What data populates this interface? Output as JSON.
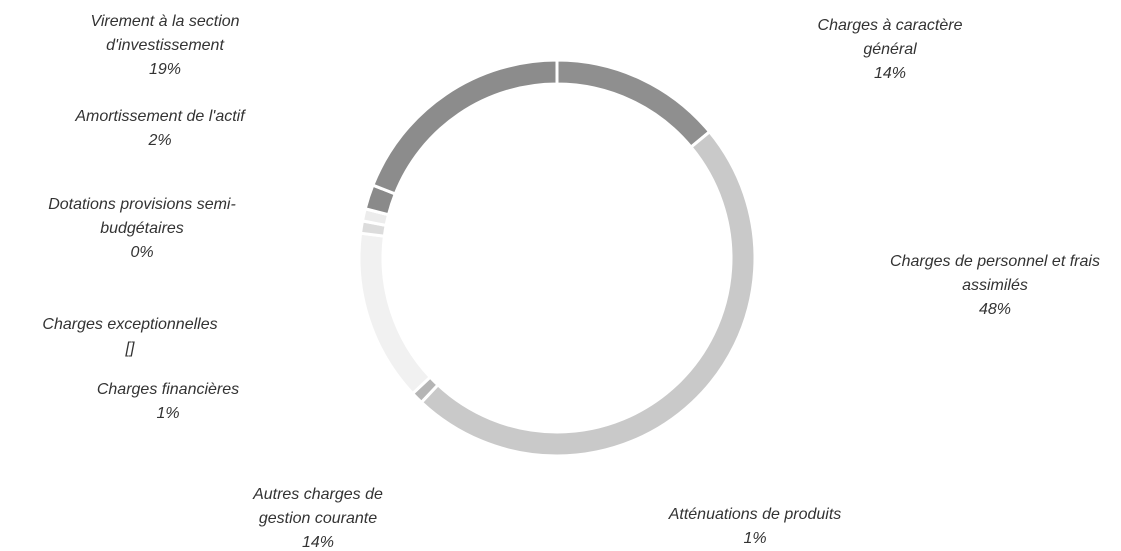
{
  "chart_data": {
    "type": "donut",
    "categories": [
      "Charges à caractère général",
      "Charges de personnel et frais assimilés",
      "Atténuations de produits",
      "Autres charges de gestion courante",
      "Charges financières",
      "Charges exceptionnelles",
      "Dotations provisions semi-budgétaires",
      "Amortissement de l'actif",
      "Virement à la section d'investissement"
    ],
    "values": [
      14,
      48,
      1,
      14,
      1,
      1,
      0,
      2,
      19
    ],
    "value_labels": [
      "14%",
      "48%",
      "1%",
      "14%",
      "1%",
      "[]",
      "0%",
      "2%",
      "19%"
    ],
    "colors": [
      "#8f8f8f",
      "#c9c9c9",
      "#b5b5b5",
      "#f1f1f1",
      "#dcdcdc",
      "#ececec",
      "#c0c0c0",
      "#8a8a8a",
      "#8c8c8c"
    ]
  }
}
